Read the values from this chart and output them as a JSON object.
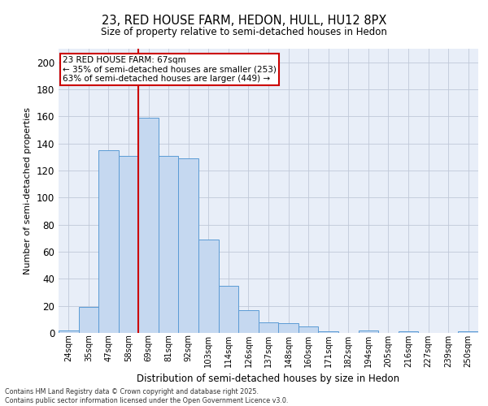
{
  "title1": "23, RED HOUSE FARM, HEDON, HULL, HU12 8PX",
  "title2": "Size of property relative to semi-detached houses in Hedon",
  "xlabel": "Distribution of semi-detached houses by size in Hedon",
  "ylabel": "Number of semi-detached properties",
  "categories": [
    "24sqm",
    "35sqm",
    "47sqm",
    "58sqm",
    "69sqm",
    "81sqm",
    "92sqm",
    "103sqm",
    "114sqm",
    "126sqm",
    "137sqm",
    "148sqm",
    "160sqm",
    "171sqm",
    "182sqm",
    "194sqm",
    "205sqm",
    "216sqm",
    "227sqm",
    "239sqm",
    "250sqm"
  ],
  "values": [
    2,
    19,
    135,
    131,
    159,
    131,
    129,
    69,
    35,
    17,
    8,
    7,
    5,
    1,
    0,
    2,
    0,
    1,
    0,
    0,
    1
  ],
  "bar_color": "#c5d8f0",
  "bar_edge_color": "#5b9bd5",
  "grid_color": "#c0c8d8",
  "background_color": "#e8eef8",
  "vline_x_index": 4,
  "vline_color": "#cc0000",
  "annotation_title": "23 RED HOUSE FARM: 67sqm",
  "annotation_line1": "← 35% of semi-detached houses are smaller (253)",
  "annotation_line2": "63% of semi-detached houses are larger (449) →",
  "annotation_box_color": "#cc0000",
  "footer1": "Contains HM Land Registry data © Crown copyright and database right 2025.",
  "footer2": "Contains public sector information licensed under the Open Government Licence v3.0.",
  "ylim": [
    0,
    210
  ],
  "yticks": [
    0,
    20,
    40,
    60,
    80,
    100,
    120,
    140,
    160,
    180,
    200
  ]
}
